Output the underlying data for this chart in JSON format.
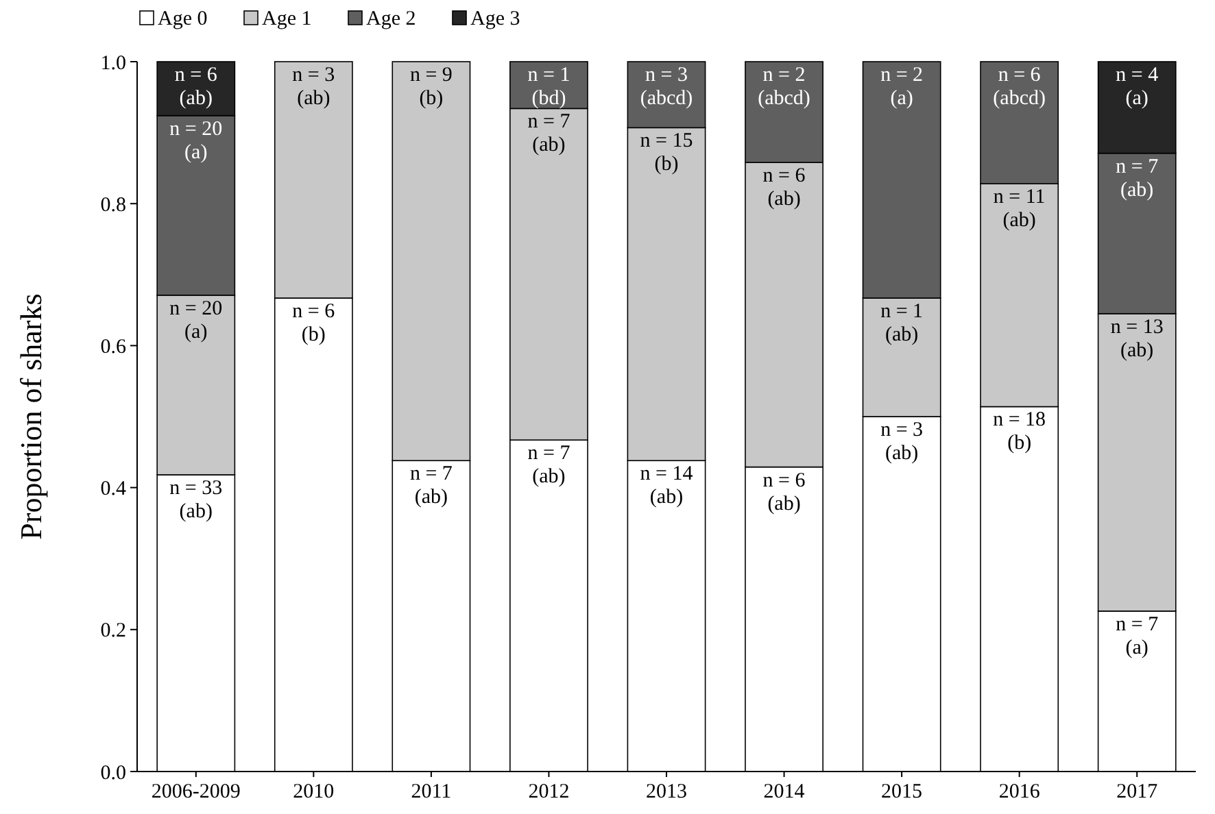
{
  "chart_data": {
    "type": "bar",
    "stacked": true,
    "ylabel": "Proportion of sharks",
    "categories": [
      "2006-2009",
      "2010",
      "2011",
      "2012",
      "2013",
      "2014",
      "2015",
      "2016",
      "2017"
    ],
    "series": [
      {
        "name": "Age 0",
        "color": "#ffffff",
        "values": [
          0.418,
          0.667,
          0.438,
          0.467,
          0.438,
          0.429,
          0.5,
          0.514,
          0.226
        ]
      },
      {
        "name": "Age 1",
        "color": "#c8c8c8",
        "values": [
          0.253,
          0.333,
          0.562,
          0.467,
          0.469,
          0.429,
          0.167,
          0.314,
          0.419
        ]
      },
      {
        "name": "Age 2",
        "color": "#5f5f5f",
        "values": [
          0.253,
          null,
          null,
          0.066,
          0.093,
          0.142,
          0.333,
          0.172,
          0.226
        ]
      },
      {
        "name": "Age 3",
        "color": "#262626",
        "values": [
          0.076,
          null,
          null,
          null,
          null,
          null,
          null,
          null,
          0.129
        ]
      }
    ],
    "annotations": [
      {
        "text": "n = 33\n(ab)",
        "x": "2006-2009",
        "y": 0.418
      },
      {
        "text": "n = 20\n(a)",
        "x": "2006-2009",
        "y": 0.671
      },
      {
        "text": "n = 20\n(a)",
        "x": "2006-2009",
        "y": 0.924
      },
      {
        "text": "n = 6\n(ab)",
        "x": "2006-2009",
        "y": 1
      },
      {
        "text": "n = 6\n(b)",
        "x": "2010",
        "y": 0.667
      },
      {
        "text": "n = 3\n(ab)",
        "x": "2010",
        "y": 1
      },
      {
        "text": "n = 7\n(ab)",
        "x": "2011",
        "y": 0.438
      },
      {
        "text": "n = 9\n(b)",
        "x": "2011",
        "y": 1
      },
      {
        "text": "n = 7\n(ab)",
        "x": "2012",
        "y": 0.467
      },
      {
        "text": "n = 7\n(ab)",
        "x": "2012",
        "y": 0.934
      },
      {
        "text": "n = 1\n(bd)",
        "x": "2012",
        "y": 1
      },
      {
        "text": "n = 14\n(ab)",
        "x": "2013",
        "y": 0.438
      },
      {
        "text": "n = 15\n(b)",
        "x": "2013",
        "y": 0.907
      },
      {
        "text": "n = 3\n(abcd)",
        "x": "2013",
        "y": 1
      },
      {
        "text": "n = 6\n(ab)",
        "x": "2014",
        "y": 0.429
      },
      {
        "text": "n = 6\n(ab)",
        "x": "2014",
        "y": 0.858
      },
      {
        "text": "n = 2\n(abcd)",
        "x": "2014",
        "y": 1
      },
      {
        "text": "n = 3\n(ab)",
        "x": "2015",
        "y": 0.5
      },
      {
        "text": "n = 1\n(ab)",
        "x": "2015",
        "y": 0.667
      },
      {
        "text": "n = 2\n(a)",
        "x": "2015",
        "y": 1
      },
      {
        "text": "n = 18\n(b)",
        "x": "2016",
        "y": 0.514
      },
      {
        "text": "n = 11\n(ab)",
        "x": "2016",
        "y": 0.828
      },
      {
        "text": "n = 6\n(abcd)",
        "x": "2016",
        "y": 1
      },
      {
        "text": "n = 7\n(a)",
        "x": "2017",
        "y": 0.226
      },
      {
        "text": "n = 13\n(ab)",
        "x": "2017",
        "y": 0.645
      },
      {
        "text": "n = 7\n(ab)",
        "x": "2017",
        "y": 0.871
      },
      {
        "text": "n = 4\n(a)",
        "x": "2017",
        "y": 1
      }
    ],
    "ylim": [
      0,
      1
    ],
    "yticks": [
      {
        "value": 0,
        "label": "0.0"
      },
      {
        "value": 0.2,
        "label": "0.2"
      },
      {
        "value": 0.4,
        "label": "0.4"
      },
      {
        "value": 0.6,
        "label": "0.6"
      },
      {
        "value": 0.8,
        "label": "0.8"
      },
      {
        "value": 1,
        "label": "1.0"
      }
    ],
    "legend": "top left",
    "grid": false
  }
}
